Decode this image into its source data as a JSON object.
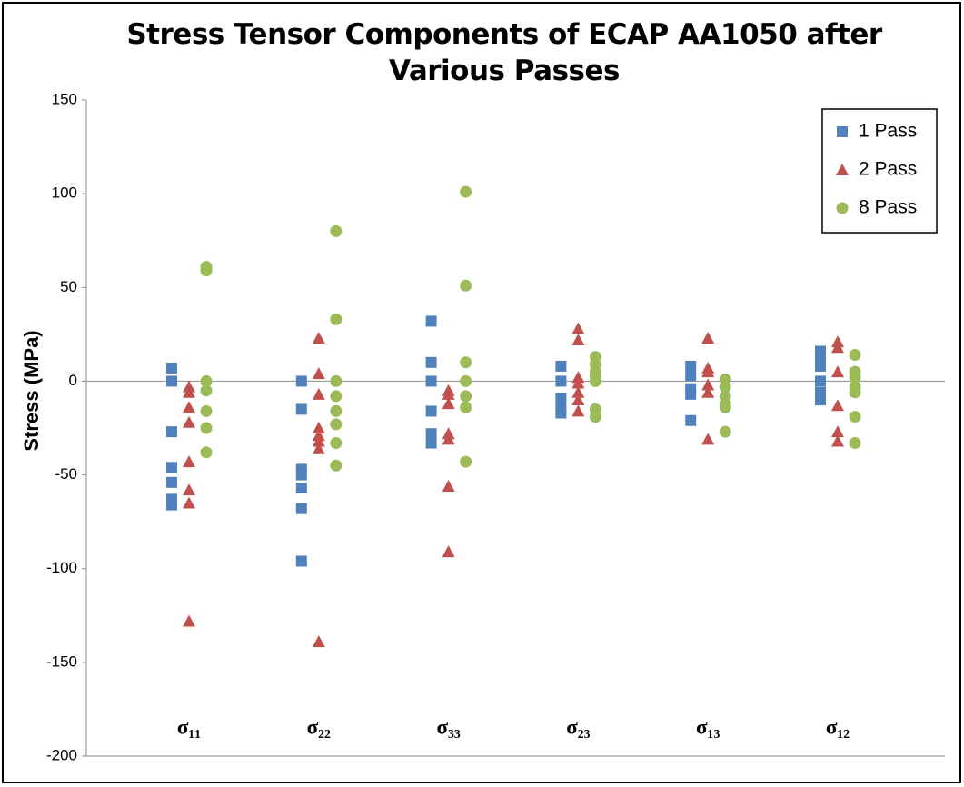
{
  "chart_data": {
    "type": "strip",
    "title": "Stress Tensor Components of ECAP AA1050 after Various Passes",
    "y_label": "Stress (MPa)",
    "categories": [
      "σ₁₁",
      "σ₂₂",
      "σ₃₃",
      "σ₂₃",
      "σ₁₃",
      "σ₁₂"
    ],
    "ylim": [
      -200,
      150
    ],
    "yticks": [
      -200,
      -150,
      -100,
      -50,
      0,
      50,
      100,
      150
    ],
    "grid": false,
    "legend": "upper right",
    "series": [
      {
        "name": "1 Pass",
        "color": "#4f81bd",
        "marker": "square",
        "values": [
          [
            7,
            0,
            -27,
            -46,
            -54,
            -63,
            -66
          ],
          [
            0,
            -15,
            -47,
            -50,
            -57,
            -68,
            -96
          ],
          [
            32,
            10,
            0,
            -16,
            -28,
            -33
          ],
          [
            8,
            0,
            -9,
            -14,
            -17
          ],
          [
            8,
            3,
            -4,
            -7,
            -21
          ],
          [
            16,
            13,
            8,
            0,
            -6,
            -10
          ]
        ]
      },
      {
        "name": "2 Pass",
        "color": "#c0504d",
        "marker": "triangle",
        "values": [
          [
            -3,
            -6,
            -14,
            -22,
            -43,
            -58,
            -65,
            -128
          ],
          [
            23,
            4,
            -7,
            -25,
            -29,
            -32,
            -36,
            -139
          ],
          [
            -5,
            -7,
            -12,
            -28,
            -31,
            -56,
            -91
          ],
          [
            28,
            22,
            2,
            -1,
            -6,
            -10,
            -16
          ],
          [
            23,
            7,
            5,
            -2,
            -6,
            -31
          ],
          [
            21,
            18,
            5,
            -13,
            -27,
            -32
          ]
        ]
      },
      {
        "name": "8 Pass",
        "color": "#9bbb59",
        "marker": "circle",
        "values": [
          [
            61,
            59,
            0,
            -5,
            -16,
            -25,
            -38
          ],
          [
            80,
            33,
            0,
            -8,
            -16,
            -23,
            -33,
            -45
          ],
          [
            101,
            51,
            10,
            0,
            -8,
            -14,
            -43
          ],
          [
            13,
            9,
            5,
            3,
            0,
            -15,
            -19
          ],
          [
            1,
            -3,
            -8,
            -12,
            -14,
            -27
          ],
          [
            14,
            5,
            2,
            -3,
            -6,
            -19,
            -33
          ]
        ]
      }
    ]
  }
}
